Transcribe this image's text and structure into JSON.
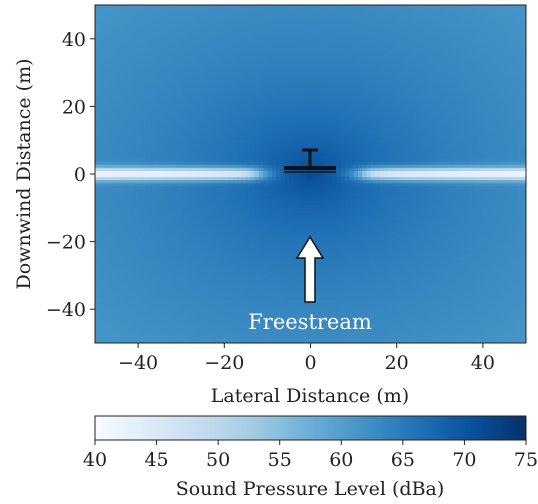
{
  "chart_data": {
    "type": "heatmap",
    "title": "",
    "xlabel": "Lateral Distance (m)",
    "ylabel": "Downwind Distance (m)",
    "xlim": [
      -50,
      50
    ],
    "ylim": [
      -50,
      50
    ],
    "xticks": [
      -40,
      -20,
      0,
      20,
      40
    ],
    "yticks": [
      -40,
      -20,
      0,
      20,
      40
    ],
    "tick_labels_x": [
      "−40",
      "−20",
      "0",
      "20",
      "40"
    ],
    "tick_labels_y": [
      "−40",
      "−20",
      "0",
      "20",
      "40"
    ],
    "grid": false,
    "colormap": "Blues",
    "colorbar": {
      "label": "Sound Pressure Level (dBa)",
      "range": [
        40,
        75
      ],
      "ticks": [
        40,
        45,
        50,
        55,
        60,
        65,
        70,
        75
      ],
      "tick_labels": [
        "40",
        "45",
        "50",
        "55",
        "60",
        "65",
        "70",
        "75"
      ],
      "orientation": "horizontal",
      "colors": [
        "#f7fbff",
        "#deebf7",
        "#c6dbef",
        "#9ecae1",
        "#6baed6",
        "#4292c6",
        "#2171b5",
        "#08519c",
        "#08306b"
      ]
    },
    "field_description": "Peak of about 72 dBa at the origin (turbine location), decreasing radially to about 60 dBa at the corners, with a narrow low band of about 44 dBa along downwind distance 0 for lateral distance beyond about 10 m.",
    "annotations": [
      {
        "text": "Freestream",
        "x": 0,
        "y": -44
      },
      {
        "type": "arrow",
        "text": "",
        "from": [
          0,
          -38
        ],
        "to": [
          0,
          -18
        ]
      }
    ],
    "turbine": {
      "location": [
        0,
        0
      ],
      "icon": "turbine-icon"
    }
  }
}
